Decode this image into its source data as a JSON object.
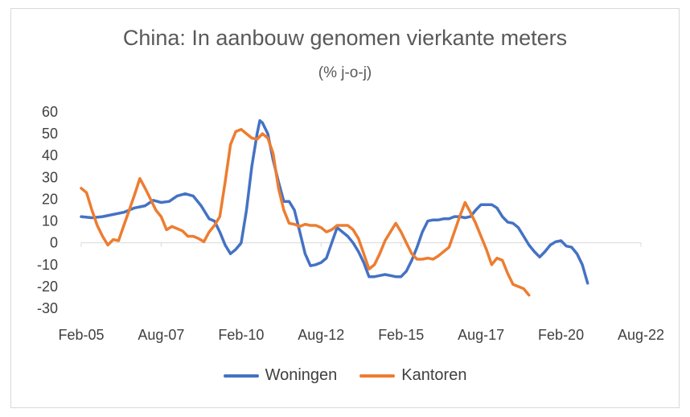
{
  "chart_data": {
    "type": "line",
    "title": "China: In aanbouw genomen vierkante meters",
    "subtitle": "(% j-o-j)",
    "xlabel": "",
    "ylabel": "",
    "x_tick_labels": [
      "Feb-05",
      "Aug-07",
      "Feb-10",
      "Aug-12",
      "Feb-15",
      "Aug-17",
      "Feb-20",
      "Aug-22"
    ],
    "x_range": [
      "Feb-05",
      "Aug-22"
    ],
    "y_ticks": [
      60,
      50,
      40,
      30,
      20,
      10,
      0,
      -10,
      -20,
      -30
    ],
    "ylim": [
      -30,
      60
    ],
    "grid": false,
    "legend_position": "bottom",
    "series": [
      {
        "name": "Woningen",
        "color": "#4472c4",
        "points": [
          [
            "Feb-05",
            12
          ],
          [
            "Jun-05",
            11.5
          ],
          [
            "Oct-05",
            12
          ],
          [
            "Feb-06",
            13
          ],
          [
            "Jun-06",
            14
          ],
          [
            "Oct-06",
            16
          ],
          [
            "Feb-07",
            17
          ],
          [
            "May-07",
            19.5
          ],
          [
            "Aug-07",
            18.5
          ],
          [
            "Nov-07",
            19
          ],
          [
            "Feb-08",
            21.5
          ],
          [
            "May-08",
            22.5
          ],
          [
            "Aug-08",
            21.5
          ],
          [
            "Nov-08",
            17
          ],
          [
            "Feb-09",
            11
          ],
          [
            "Apr-09",
            10
          ],
          [
            "Jun-09",
            5
          ],
          [
            "Aug-09",
            -1
          ],
          [
            "Oct-09",
            -5
          ],
          [
            "Dec-09",
            -3
          ],
          [
            "Feb-10",
            0
          ],
          [
            "Apr-10",
            15
          ],
          [
            "Jun-10",
            35
          ],
          [
            "Aug-10",
            50
          ],
          [
            "Sep-10",
            56
          ],
          [
            "Oct-10",
            55
          ],
          [
            "Dec-10",
            50
          ],
          [
            "Feb-11",
            38
          ],
          [
            "Apr-11",
            28
          ],
          [
            "Jun-11",
            19
          ],
          [
            "Aug-11",
            19
          ],
          [
            "Oct-11",
            15
          ],
          [
            "Dec-11",
            5
          ],
          [
            "Feb-12",
            -5
          ],
          [
            "Apr-12",
            -10.5
          ],
          [
            "Jun-12",
            -10
          ],
          [
            "Aug-12",
            -9
          ],
          [
            "Oct-12",
            -7
          ],
          [
            "Dec-12",
            0
          ],
          [
            "Feb-13",
            7
          ],
          [
            "Apr-13",
            5
          ],
          [
            "Jun-13",
            3
          ],
          [
            "Aug-13",
            0
          ],
          [
            "Oct-13",
            -4
          ],
          [
            "Dec-13",
            -9
          ],
          [
            "Feb-14",
            -15.5
          ],
          [
            "Apr-14",
            -15.5
          ],
          [
            "Jun-14",
            -15
          ],
          [
            "Aug-14",
            -14.5
          ],
          [
            "Oct-14",
            -15
          ],
          [
            "Dec-14",
            -15.5
          ],
          [
            "Feb-15",
            -15.5
          ],
          [
            "Apr-15",
            -13
          ],
          [
            "Jun-15",
            -8
          ],
          [
            "Aug-15",
            -2
          ],
          [
            "Oct-15",
            5
          ],
          [
            "Dec-15",
            10
          ],
          [
            "Feb-16",
            10.5
          ],
          [
            "Apr-16",
            10.5
          ],
          [
            "Jun-16",
            11
          ],
          [
            "Aug-16",
            11
          ],
          [
            "Oct-16",
            12
          ],
          [
            "Dec-16",
            12
          ],
          [
            "Feb-17",
            11.5
          ],
          [
            "Apr-17",
            12
          ],
          [
            "Jun-17",
            15
          ],
          [
            "Aug-17",
            17.5
          ],
          [
            "Oct-17",
            17.5
          ],
          [
            "Dec-17",
            17.5
          ],
          [
            "Feb-18",
            16
          ],
          [
            "Apr-18",
            12
          ],
          [
            "Jun-18",
            9.5
          ],
          [
            "Aug-18",
            9
          ],
          [
            "Oct-18",
            7
          ],
          [
            "Dec-18",
            3
          ],
          [
            "Feb-19",
            -1
          ],
          [
            "Apr-19",
            -4
          ],
          [
            "Jun-19",
            -6.5
          ],
          [
            "Aug-19",
            -4
          ],
          [
            "Oct-19",
            -1
          ],
          [
            "Dec-19",
            0.5
          ],
          [
            "Feb-20",
            1
          ],
          [
            "Apr-20",
            -1.5
          ],
          [
            "Jun-20",
            -2
          ],
          [
            "Aug-20",
            -5
          ],
          [
            "Oct-20",
            -10
          ],
          [
            "Dec-20",
            -18.5
          ]
        ]
      },
      {
        "name": "Kantoren",
        "color": "#ed7d31",
        "points": [
          [
            "Feb-05",
            25
          ],
          [
            "Apr-05",
            23
          ],
          [
            "Jun-05",
            15
          ],
          [
            "Aug-05",
            8
          ],
          [
            "Oct-05",
            3
          ],
          [
            "Dec-05",
            -1
          ],
          [
            "Feb-06",
            1.5
          ],
          [
            "Apr-06",
            1
          ],
          [
            "Jun-06",
            8
          ],
          [
            "Aug-06",
            15
          ],
          [
            "Oct-06",
            22
          ],
          [
            "Dec-06",
            29.5
          ],
          [
            "Feb-07",
            25
          ],
          [
            "Apr-07",
            20
          ],
          [
            "Jun-07",
            15
          ],
          [
            "Aug-07",
            12
          ],
          [
            "Oct-07",
            6
          ],
          [
            "Dec-07",
            7.5
          ],
          [
            "Feb-08",
            6.5
          ],
          [
            "Apr-08",
            5.5
          ],
          [
            "Jun-08",
            3
          ],
          [
            "Aug-08",
            3
          ],
          [
            "Oct-08",
            2
          ],
          [
            "Dec-08",
            0.5
          ],
          [
            "Feb-09",
            5
          ],
          [
            "Apr-09",
            8
          ],
          [
            "Jun-09",
            12
          ],
          [
            "Aug-09",
            28
          ],
          [
            "Oct-09",
            45
          ],
          [
            "Dec-09",
            51
          ],
          [
            "Feb-10",
            52
          ],
          [
            "Apr-10",
            50
          ],
          [
            "Jun-10",
            48
          ],
          [
            "Aug-10",
            47.5
          ],
          [
            "Oct-10",
            50
          ],
          [
            "Dec-10",
            48
          ],
          [
            "Feb-11",
            41
          ],
          [
            "Apr-11",
            25
          ],
          [
            "Jun-11",
            15
          ],
          [
            "Aug-11",
            9
          ],
          [
            "Oct-11",
            8.5
          ],
          [
            "Dec-11",
            7.5
          ],
          [
            "Feb-12",
            8.5
          ],
          [
            "Apr-12",
            8
          ],
          [
            "Jun-12",
            8
          ],
          [
            "Aug-12",
            7
          ],
          [
            "Oct-12",
            5
          ],
          [
            "Dec-12",
            6
          ],
          [
            "Feb-13",
            8
          ],
          [
            "Apr-13",
            8
          ],
          [
            "Jun-13",
            8
          ],
          [
            "Aug-13",
            6
          ],
          [
            "Oct-13",
            2
          ],
          [
            "Dec-13",
            -5
          ],
          [
            "Feb-14",
            -12
          ],
          [
            "Apr-14",
            -10
          ],
          [
            "Jun-14",
            -5
          ],
          [
            "Aug-14",
            1
          ],
          [
            "Oct-14",
            5
          ],
          [
            "Dec-14",
            9
          ],
          [
            "Feb-15",
            5
          ],
          [
            "Apr-15",
            0
          ],
          [
            "Jun-15",
            -5
          ],
          [
            "Aug-15",
            -7.5
          ],
          [
            "Oct-15",
            -7.5
          ],
          [
            "Dec-15",
            -7
          ],
          [
            "Feb-16",
            -7.5
          ],
          [
            "Apr-16",
            -6
          ],
          [
            "Jun-16",
            -4
          ],
          [
            "Aug-16",
            -2
          ],
          [
            "Oct-16",
            5
          ],
          [
            "Dec-16",
            12
          ],
          [
            "Feb-17",
            18.5
          ],
          [
            "Apr-17",
            14
          ],
          [
            "Jun-17",
            9
          ],
          [
            "Aug-17",
            3
          ],
          [
            "Oct-17",
            -3
          ],
          [
            "Dec-17",
            -10
          ],
          [
            "Feb-18",
            -7
          ],
          [
            "Apr-18",
            -8
          ],
          [
            "Jun-18",
            -14
          ],
          [
            "Aug-18",
            -19
          ],
          [
            "Oct-18",
            -20
          ],
          [
            "Dec-18",
            -21
          ],
          [
            "Feb-19",
            -24
          ]
        ]
      }
    ]
  }
}
